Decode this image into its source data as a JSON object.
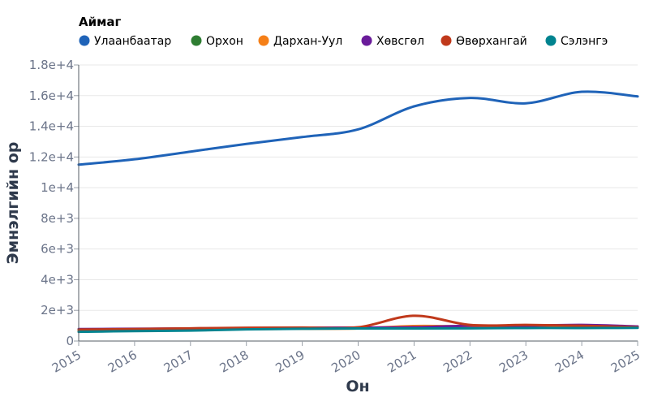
{
  "chart_data": {
    "type": "line",
    "legend_title": "Аймаг",
    "legend_position": "top-left",
    "xlabel": "Он",
    "ylabel": "Эмнэлгийн ор",
    "x": [
      2015,
      2016,
      2017,
      2018,
      2019,
      2020,
      2021,
      2022,
      2023,
      2024,
      2025
    ],
    "xlim": [
      2015,
      2025
    ],
    "ylim": [
      0,
      18000
    ],
    "y_ticks": [
      0,
      2000,
      4000,
      6000,
      8000,
      10000,
      12000,
      14000,
      16000,
      18000
    ],
    "y_tick_labels": [
      "0",
      "2e+3",
      "4e+3",
      "6e+3",
      "8e+3",
      "1e+4",
      "1.2e+4",
      "1.4e+4",
      "1.6e+4",
      "1.8e+4"
    ],
    "x_tick_labels": [
      "2015",
      "2016",
      "2017",
      "2018",
      "2019",
      "2020",
      "2021",
      "2022",
      "2023",
      "2024",
      "2025"
    ],
    "grid": true,
    "series": [
      {
        "name": "Улаанбаатар",
        "color": "#1f63b8",
        "values": [
          11500,
          11850,
          12350,
          12850,
          13300,
          13800,
          15300,
          15850,
          15500,
          16250,
          15950
        ]
      },
      {
        "name": "Орхон",
        "color": "#2e7d32",
        "values": [
          650,
          700,
          720,
          800,
          850,
          850,
          850,
          880,
          880,
          870,
          880
        ]
      },
      {
        "name": "Дархан-Уул",
        "color": "#f57f17",
        "values": [
          700,
          750,
          800,
          780,
          800,
          820,
          980,
          950,
          920,
          920,
          900
        ]
      },
      {
        "name": "Хөвсгөл",
        "color": "#6a1b9a",
        "values": [
          780,
          800,
          820,
          850,
          870,
          880,
          900,
          1000,
          1000,
          1050,
          950
        ]
      },
      {
        "name": "Өвөрхангай",
        "color": "#c0391b",
        "values": [
          750,
          780,
          830,
          870,
          880,
          900,
          1650,
          1050,
          1050,
          1000,
          900
        ]
      },
      {
        "name": "Сэлэнгэ",
        "color": "#00838f",
        "values": [
          600,
          650,
          680,
          760,
          800,
          820,
          820,
          830,
          850,
          850,
          860
        ]
      }
    ]
  }
}
